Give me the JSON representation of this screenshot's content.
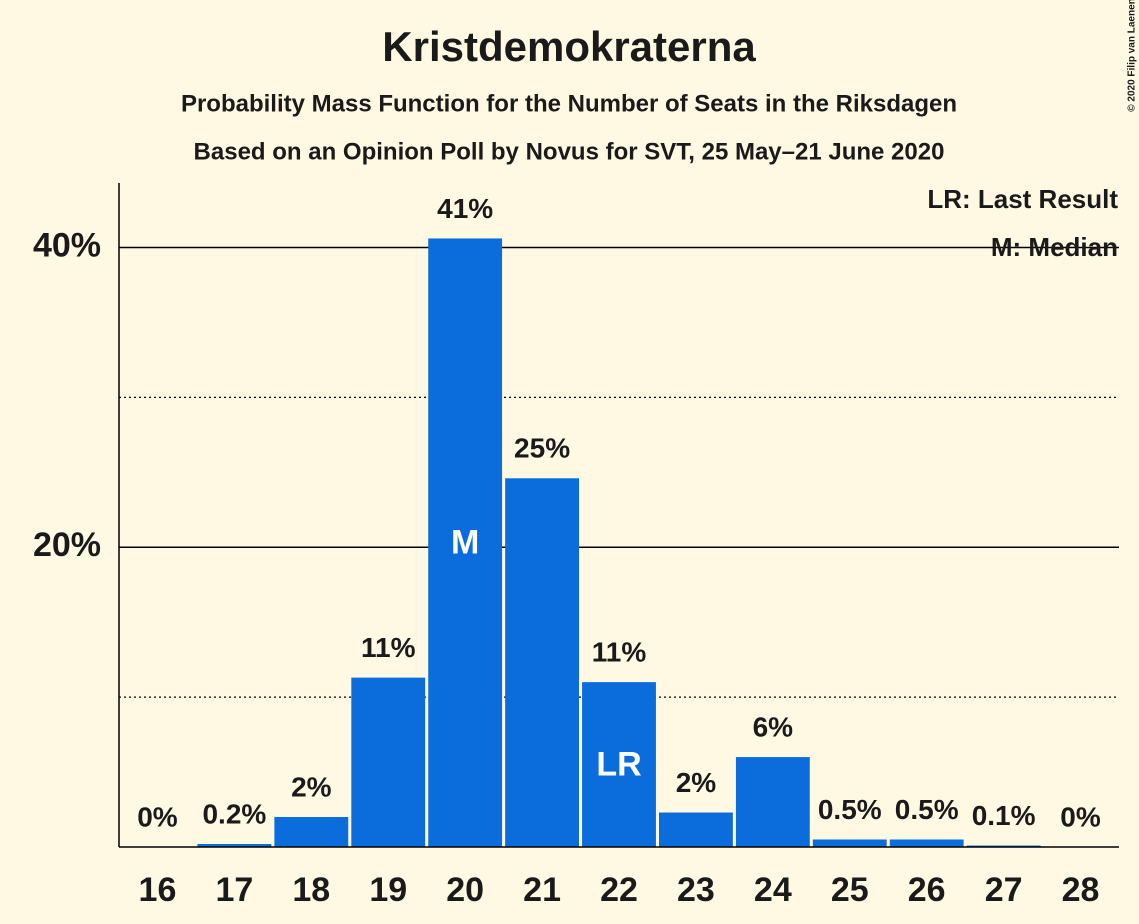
{
  "chart_data": {
    "type": "bar",
    "title": "Kristdemokraterna",
    "subtitle": "Probability Mass Function for the Number of Seats in the Riksdagen",
    "subtitle2": "Based on an Opinion Poll by Novus for SVT, 25 May–21 June 2020",
    "copyright": "© 2020 Filip van Laenen",
    "categories": [
      "16",
      "17",
      "18",
      "19",
      "20",
      "21",
      "22",
      "23",
      "24",
      "25",
      "26",
      "27",
      "28"
    ],
    "values": [
      0,
      0.2,
      2,
      11.3,
      40.6,
      24.6,
      11,
      2.3,
      6,
      0.5,
      0.5,
      0.1,
      0
    ],
    "value_labels": [
      "0%",
      "0.2%",
      "2%",
      "11%",
      "41%",
      "25%",
      "11%",
      "2%",
      "6%",
      "0.5%",
      "0.5%",
      "0.1%",
      "0%"
    ],
    "bar_labels": [
      null,
      null,
      null,
      null,
      "M",
      null,
      "LR",
      null,
      null,
      null,
      null,
      null,
      null
    ],
    "legend": [
      "LR: Last Result",
      "M: Median"
    ],
    "color": "#0a6ddb",
    "ylim": [
      0,
      44.3
    ],
    "yticks": [
      {
        "value": 20,
        "label": "20%"
      },
      {
        "value": 40,
        "label": "40%"
      }
    ],
    "minor_yticks": [
      10,
      30
    ],
    "grid": true
  }
}
